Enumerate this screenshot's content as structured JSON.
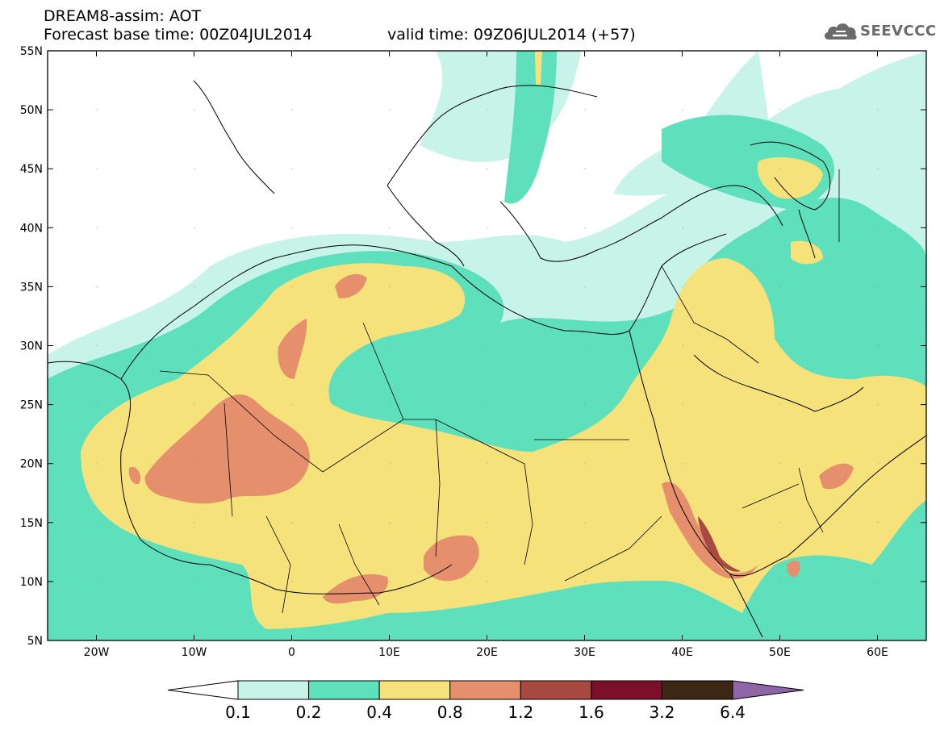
{
  "header": {
    "title": "DREAM8-assim: AOT",
    "base_time_line": "Forecast base time: 00Z04JUL2014",
    "valid_time_line": "valid time: 09Z06JUL2014 (+57)"
  },
  "logo": {
    "text": "SEEVCCC",
    "icon": "cloud-icon"
  },
  "map": {
    "lon_range": [
      -25,
      65
    ],
    "lat_range": [
      5,
      55
    ],
    "lat_ticks": [
      "55N",
      "50N",
      "45N",
      "40N",
      "35N",
      "30N",
      "25N",
      "20N",
      "15N",
      "10N",
      "5N"
    ],
    "lon_ticks": [
      "20W",
      "10W",
      "0",
      "10E",
      "20E",
      "30E",
      "40E",
      "50E",
      "60E"
    ]
  },
  "colorbar": {
    "labels": [
      "0.1",
      "0.2",
      "0.4",
      "0.8",
      "1.2",
      "1.6",
      "3.2",
      "6.4"
    ],
    "colors": [
      "#ffffff",
      "#c8f3e9",
      "#5ee0bd",
      "#f6e27a",
      "#e68f6c",
      "#a84a41",
      "#7c0f2a",
      "#3d2614",
      "#8e66a8"
    ]
  }
}
